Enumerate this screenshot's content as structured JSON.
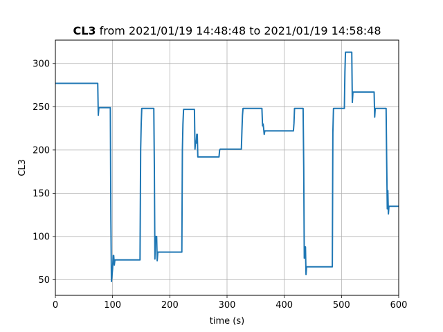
{
  "chart_data": {
    "type": "line",
    "title_bold": "CL3",
    "title_rest": " from 2021/01/19 14:48:48 to 2021/01/19 14:58:48",
    "xlabel": "time (s)",
    "ylabel": "CL3",
    "xlim": [
      0,
      600
    ],
    "ylim": [
      32,
      327
    ],
    "xticks": [
      0,
      100,
      200,
      300,
      400,
      500,
      600
    ],
    "yticks": [
      50,
      100,
      150,
      200,
      250,
      300
    ],
    "grid": true,
    "line_color": "#1f77b4",
    "series": [
      {
        "x": [
          0,
          74,
          75,
          76,
          77,
          96,
          97,
          98,
          99,
          100,
          101,
          102,
          103,
          104,
          105,
          106,
          148,
          149,
          150,
          151,
          172,
          173,
          174,
          175,
          176,
          177,
          178,
          179,
          180,
          221,
          222,
          223,
          224,
          225,
          243,
          244,
          245,
          246,
          247,
          248,
          249,
          250,
          251,
          286,
          287,
          288,
          289,
          325,
          326,
          327,
          328,
          361,
          362,
          363,
          364,
          365,
          366,
          367,
          416,
          417,
          418,
          419,
          433,
          434,
          435,
          436,
          437,
          438,
          439,
          440,
          441,
          484,
          485,
          486,
          487,
          505,
          506,
          507,
          508,
          509,
          518,
          519,
          520,
          521,
          522,
          557,
          558,
          559,
          560,
          561,
          562,
          578,
          579,
          580,
          581,
          582,
          583,
          584,
          585,
          600
        ],
        "y": [
          277,
          277,
          240,
          249,
          249,
          249,
          120,
          48,
          55,
          63,
          78,
          78,
          67,
          73,
          73,
          73,
          73,
          200,
          230,
          248,
          248,
          180,
          74,
          100,
          100,
          100,
          72,
          82,
          82,
          82,
          200,
          230,
          247,
          247,
          247,
          201,
          210,
          208,
          218,
          218,
          192,
          192,
          192,
          192,
          200,
          201,
          201,
          201,
          222,
          240,
          248,
          248,
          228,
          230,
          225,
          218,
          222,
          222,
          222,
          231,
          248,
          248,
          248,
          180,
          75,
          88,
          88,
          56,
          65,
          65,
          65,
          65,
          220,
          248,
          248,
          248,
          290,
          313,
          313,
          313,
          313,
          255,
          267,
          267,
          267,
          267,
          238,
          248,
          248,
          248,
          248,
          248,
          190,
          132,
          153,
          126,
          135,
          135,
          135,
          135
        ]
      }
    ]
  }
}
